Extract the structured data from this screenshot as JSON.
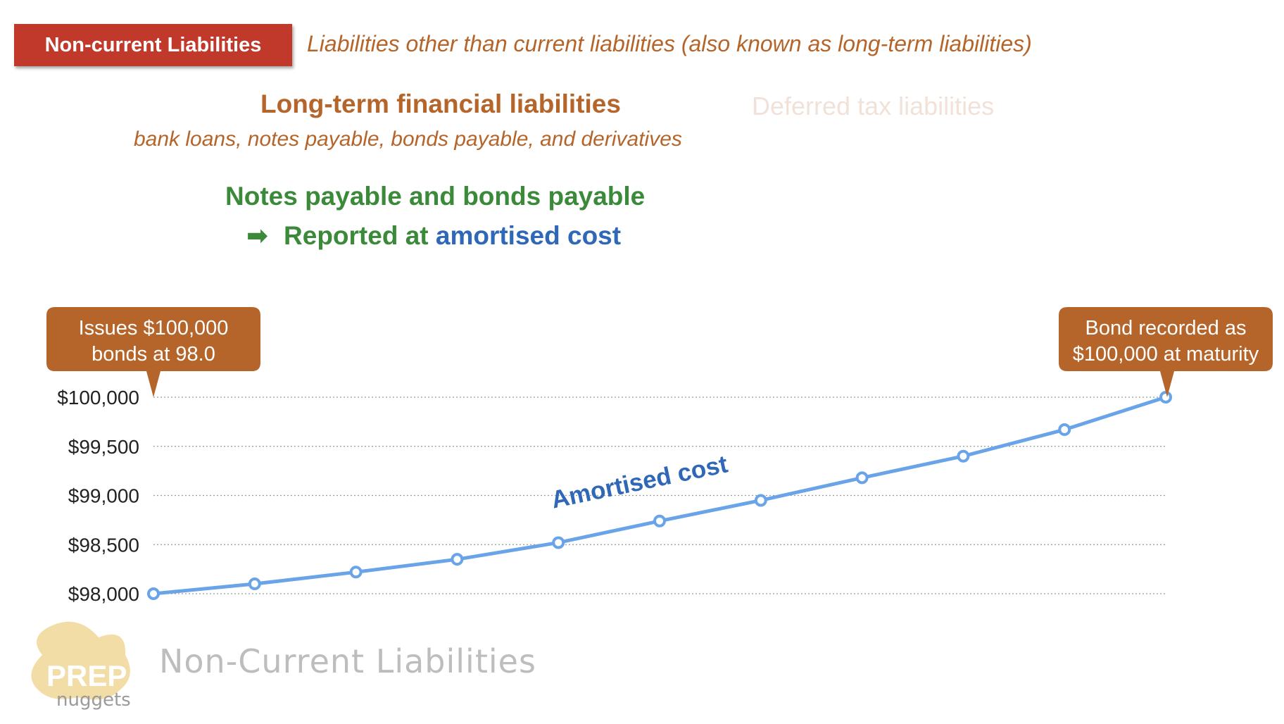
{
  "header": {
    "tag_label": "Non-current Liabilities",
    "definition": "Liabilities other than current liabilities (also known as long-term liabilities)"
  },
  "categories": {
    "financial_heading": "Long-term financial liabilities",
    "financial_examples": "bank loans, notes payable, bonds payable, and derivatives",
    "deferred_tax": "Deferred tax liabilities"
  },
  "focus": {
    "heading": "Notes payable and bonds payable",
    "arrow": "➡",
    "reported_prefix": "Reported at",
    "reported_emphasis": "amortised cost"
  },
  "callouts": {
    "start_line1": "Issues $100,000",
    "start_line2": "bonds at 98.0",
    "end_line1": "Bond recorded as",
    "end_line2": "$100,000 at maturity"
  },
  "footer": {
    "logo_top": "PREP",
    "logo_bottom": "nuggets",
    "watermark": "Non-Current Liabilities"
  },
  "colors": {
    "tag_red": "#c0392b",
    "brown": "#b5652a",
    "green": "#3a8a3a",
    "blue": "#2f68b6",
    "line": "#6aa4e8",
    "callout": "#b5652a"
  },
  "chart_data": {
    "type": "line",
    "x": [
      0,
      1,
      2,
      3,
      4,
      5,
      6,
      7,
      8,
      9,
      10
    ],
    "series": [
      {
        "name": "Amortised cost",
        "values": [
          98000,
          98100,
          98220,
          98350,
          98520,
          98740,
          98950,
          99180,
          99400,
          99670,
          100000
        ]
      }
    ],
    "y_ticks": [
      98000,
      98500,
      99000,
      99500,
      100000
    ],
    "y_tick_labels": [
      "$98,000",
      "$98,500",
      "$99,000",
      "$99,500",
      "$100,000"
    ],
    "ylim": [
      98000,
      100000
    ],
    "grid": "horizontal dotted",
    "title": "",
    "xlabel": "",
    "ylabel": ""
  }
}
